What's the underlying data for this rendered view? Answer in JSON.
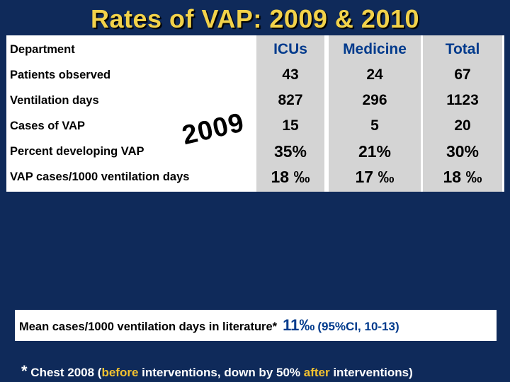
{
  "title": "Rates of VAP:  2009 & 2010",
  "table": {
    "header": {
      "label": "Department",
      "cols": [
        "ICUs",
        "Medicine",
        "Total"
      ]
    },
    "rows": [
      {
        "label": "Patients observed",
        "values": [
          "43",
          "24",
          "67"
        ]
      },
      {
        "label": "Ventilation days",
        "values": [
          "827",
          "296",
          "1123"
        ]
      },
      {
        "label": "Cases of VAP",
        "values": [
          "15",
          "5",
          "20"
        ]
      },
      {
        "label": "Percent developing VAP",
        "values": [
          "35%",
          "21%",
          "30%"
        ]
      },
      {
        "label": "VAP cases/1000 ventilation days",
        "values": [
          "18 ‰",
          "17 ‰",
          "18 ‰"
        ]
      }
    ]
  },
  "year_stamp": "2009",
  "mean_box": {
    "text": "Mean cases/1000 ventilation days in literature*",
    "value": "11‰",
    "ci": "(95%CI, 10-13)"
  },
  "footnote": {
    "star": "*",
    "part1": " Chest 2008  (",
    "before": "before",
    "part2": " interventions, down by 50% ",
    "after": "after",
    "part3": " interventions)"
  },
  "colors": {
    "background": "#0f2a5a",
    "title": "#f2d24a",
    "header": "#003a8c",
    "highlight": "#f2c230"
  }
}
